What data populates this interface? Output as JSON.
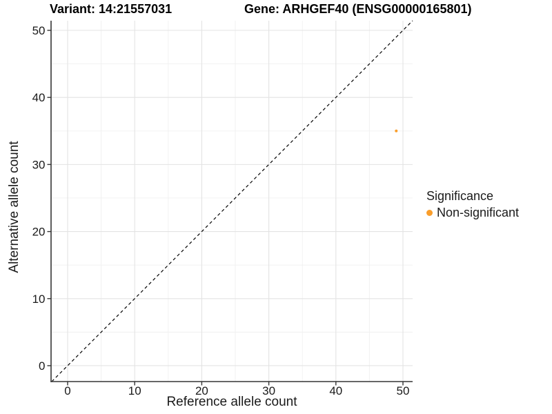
{
  "chart_data": {
    "type": "scatter",
    "titles": {
      "left": "Variant: 14:21557031",
      "right": "Gene: ARHGEF40 (ENSG00000165801)"
    },
    "xlabel": "Reference allele count",
    "ylabel": "Alternative allele count",
    "xlim": [
      -2.47,
      51.44
    ],
    "ylim": [
      -2.37,
      51.44
    ],
    "x_ticks": [
      0,
      10,
      20,
      30,
      40,
      50
    ],
    "y_ticks": [
      0,
      10,
      20,
      30,
      40,
      50
    ],
    "x_minor_ticks": [
      5,
      15,
      25,
      35,
      45
    ],
    "y_minor_ticks": [
      5,
      15,
      25,
      35,
      45
    ],
    "grid": true,
    "reference_line": {
      "type": "identity",
      "slope": 1,
      "intercept": 0,
      "style": "dashed",
      "color": "#000000"
    },
    "series": [
      {
        "name": "Non-significant",
        "color": "#FA9E2B",
        "point_radius": 2,
        "points": [
          {
            "x": 49,
            "y": 35
          }
        ]
      }
    ],
    "legend": {
      "title": "Significance",
      "position": "right",
      "entries": [
        {
          "label": "Non-significant",
          "color": "#FA9E2B"
        }
      ]
    },
    "colors": {
      "grid_major": "#e3e3e3",
      "grid_minor": "#f0f0f0",
      "axis": "#333333",
      "text": "#1a1a1a",
      "background": "#ffffff"
    }
  }
}
